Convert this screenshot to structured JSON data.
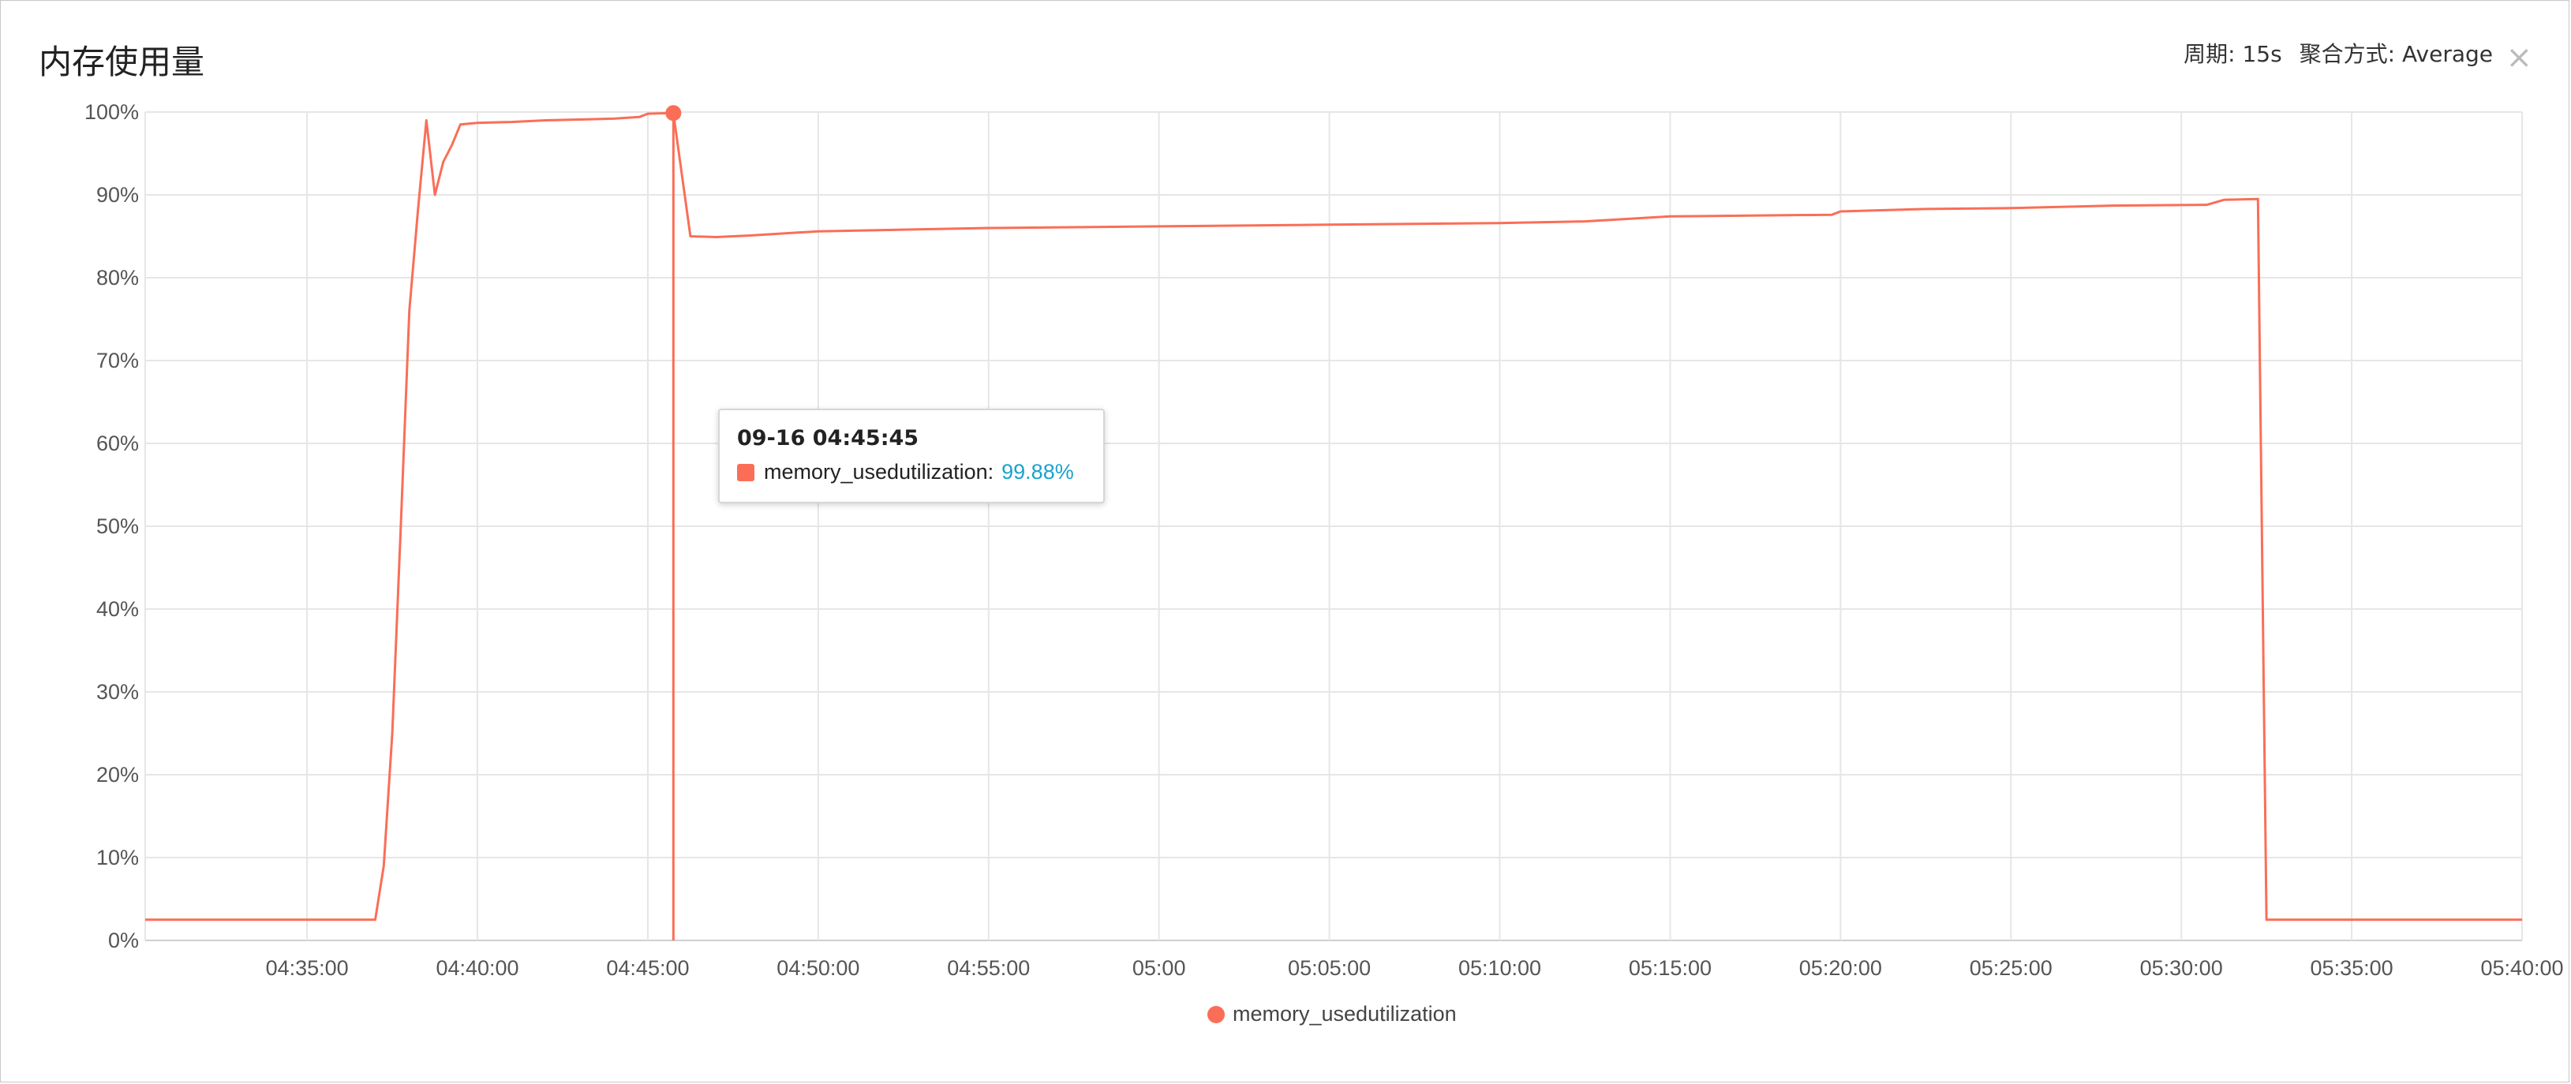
{
  "panel": {
    "title": "内存使用量",
    "period_label": "周期: 15s",
    "aggregation_label": "聚合方式: Average",
    "close_symbol": "×"
  },
  "tooltip": {
    "time": "09-16 04:45:45",
    "series": "memory_usedutilization:",
    "value": "99.88%"
  },
  "legend": {
    "label": "memory_usedutilization",
    "color": "#fa6e57"
  },
  "chart_data": {
    "type": "line",
    "xlabel": "",
    "ylabel": "",
    "x_range": [
      "04:30:15",
      "05:40:00"
    ],
    "ylim": [
      0,
      100
    ],
    "grid": true,
    "legend_position": "bottom-center",
    "x_ticks": [
      "04:35:00",
      "04:40:00",
      "04:45:00",
      "04:50:00",
      "04:55:00",
      "05:00",
      "05:05:00",
      "05:10:00",
      "05:15:00",
      "05:20:00",
      "05:25:00",
      "05:30:00",
      "05:35:00",
      "05:40:00"
    ],
    "y_ticks": [
      "0%",
      "10%",
      "20%",
      "30%",
      "40%",
      "50%",
      "60%",
      "70%",
      "80%",
      "90%",
      "100%"
    ],
    "series": [
      {
        "name": "memory_usedutilization",
        "color": "#fa6e57",
        "points": [
          [
            "04:30:15",
            2.5
          ],
          [
            "04:37:00",
            2.5
          ],
          [
            "04:37:15",
            9
          ],
          [
            "04:37:30",
            25
          ],
          [
            "04:37:45",
            50
          ],
          [
            "04:38:00",
            76
          ],
          [
            "04:38:15",
            88
          ],
          [
            "04:38:30",
            99
          ],
          [
            "04:38:45",
            90
          ],
          [
            "04:39:00",
            94
          ],
          [
            "04:39:15",
            96
          ],
          [
            "04:39:30",
            98.5
          ],
          [
            "04:40:00",
            98.7
          ],
          [
            "04:41:00",
            98.8
          ],
          [
            "04:42:00",
            99.0
          ],
          [
            "04:43:00",
            99.1
          ],
          [
            "04:44:00",
            99.2
          ],
          [
            "04:44:45",
            99.4
          ],
          [
            "04:45:00",
            99.8
          ],
          [
            "04:45:45",
            99.88
          ],
          [
            "04:46:15",
            85
          ],
          [
            "04:47:00",
            84.9
          ],
          [
            "04:48:00",
            85.1
          ],
          [
            "04:50:00",
            85.6
          ],
          [
            "04:55:00",
            86.0
          ],
          [
            "05:00:00",
            86.2
          ],
          [
            "05:05:00",
            86.4
          ],
          [
            "05:10:00",
            86.6
          ],
          [
            "05:12:30",
            86.8
          ],
          [
            "05:15:00",
            87.4
          ],
          [
            "05:19:45",
            87.6
          ],
          [
            "05:20:00",
            88.0
          ],
          [
            "05:22:30",
            88.3
          ],
          [
            "05:25:00",
            88.4
          ],
          [
            "05:28:00",
            88.7
          ],
          [
            "05:30:45",
            88.8
          ],
          [
            "05:31:15",
            89.4
          ],
          [
            "05:32:15",
            89.5
          ],
          [
            "05:32:30",
            2.5
          ],
          [
            "05:40:00",
            2.5
          ]
        ]
      }
    ],
    "highlight": {
      "x": "04:45:45",
      "y": 99.88
    }
  }
}
